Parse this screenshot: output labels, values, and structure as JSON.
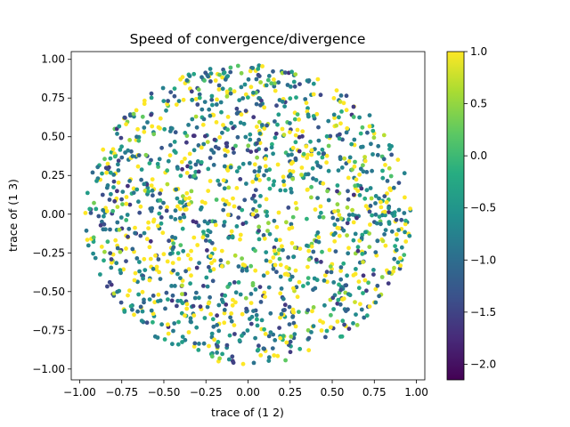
{
  "chart_data": {
    "type": "scatter",
    "title": "Speed of convergence/divergence",
    "xlabel": "trace of (1 2)",
    "ylabel": "trace of (1 3)",
    "xlim": [
      -1.05,
      1.05
    ],
    "ylim": [
      -1.07,
      1.05
    ],
    "xticks": [
      "−1.00",
      "−0.75",
      "−0.50",
      "−0.25",
      "0.00",
      "0.25",
      "0.50",
      "0.75",
      "1.00"
    ],
    "xtick_values": [
      -1.0,
      -0.75,
      -0.5,
      -0.25,
      0.0,
      0.25,
      0.5,
      0.75,
      1.0
    ],
    "yticks": [
      "−1.00",
      "−0.75",
      "−0.50",
      "−0.25",
      "0.00",
      "0.25",
      "0.50",
      "0.75",
      "1.00"
    ],
    "ytick_values": [
      -1.0,
      -0.75,
      -0.5,
      -0.25,
      0.0,
      0.25,
      0.5,
      0.75,
      1.0
    ],
    "grid": false,
    "colorbar": {
      "colormap": "viridis",
      "range": [
        -2.15,
        1.0
      ],
      "ticks": [
        "1.0",
        "0.5",
        "0.0",
        "−0.5",
        "−1.0",
        "−1.5",
        "−2.0"
      ],
      "tick_values": [
        1.0,
        0.5,
        0.0,
        -0.5,
        -1.0,
        -1.5,
        -2.0
      ]
    },
    "point_count": 1500,
    "point_distribution": "approximately uniform within the unit disc; color values mostly between -1.5 and 1.0, with a cluster of values at 1.0 near the center"
  }
}
